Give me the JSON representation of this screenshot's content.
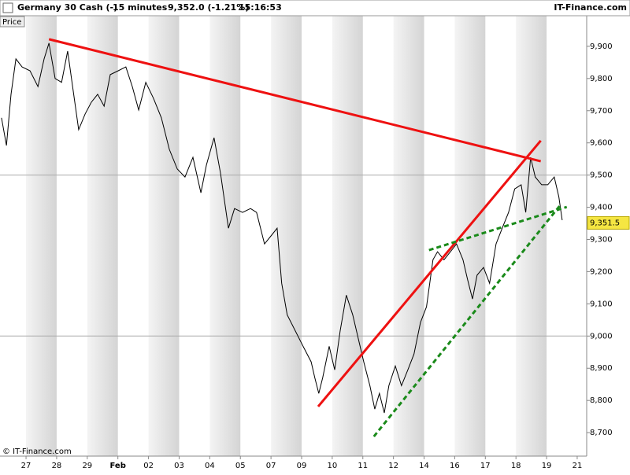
{
  "header": {
    "instrument": "Germany 30 Cash (-)",
    "interval": "15 minutes",
    "quote": "9,352.0 (-1.21%)",
    "time": "15:16:53",
    "brand": "IT-Finance.com"
  },
  "chart_data": {
    "type": "line",
    "footer": "© IT-Finance.com",
    "x": [
      -0.8,
      -0.64,
      -0.49,
      -0.33,
      -0.13,
      0.13,
      0.39,
      0.59,
      0.75,
      0.95,
      1.16,
      1.36,
      1.52,
      1.72,
      1.93,
      2.13,
      2.34,
      2.55,
      2.75,
      3.01,
      3.26,
      3.47,
      3.68,
      3.91,
      4.16,
      4.42,
      4.68,
      4.94,
      5.19,
      5.45,
      5.71,
      5.89,
      6.14,
      6.35,
      6.61,
      6.81,
      7.07,
      7.33,
      7.53,
      7.79,
      8.0,
      8.2,
      8.35,
      8.53,
      8.79,
      9.05,
      9.31,
      9.43,
      9.56,
      9.69,
      9.9,
      10.08,
      10.26,
      10.46,
      10.67,
      10.85,
      11.03,
      11.23,
      11.39,
      11.54,
      11.7,
      11.85,
      12.06,
      12.26,
      12.47,
      12.67,
      12.88,
      13.08,
      13.29,
      13.44,
      13.65,
      13.86,
      14.06,
      14.27,
      14.42,
      14.58,
      14.73,
      14.94,
      15.14,
      15.35,
      15.55,
      15.76,
      15.96,
      16.17,
      16.32,
      16.48,
      16.63,
      16.84,
      17.04,
      17.25,
      17.4,
      17.51
    ],
    "series": [
      {
        "name": "Price",
        "color": "#000000",
        "values": [
          9678,
          9592,
          9751,
          9861,
          9836,
          9824,
          9775,
          9861,
          9910,
          9800,
          9788,
          9885,
          9775,
          9641,
          9690,
          9726,
          9751,
          9714,
          9812,
          9824,
          9836,
          9775,
          9702,
          9788,
          9739,
          9678,
          9580,
          9519,
          9494,
          9555,
          9445,
          9531,
          9616,
          9506,
          9335,
          9396,
          9384,
          9396,
          9384,
          9286,
          9311,
          9335,
          9164,
          9066,
          9017,
          8968,
          8920,
          8871,
          8822,
          8871,
          8968,
          8895,
          9017,
          9127,
          9066,
          8993,
          8920,
          8846,
          8773,
          8822,
          8761,
          8846,
          8907,
          8846,
          8895,
          8944,
          9042,
          9091,
          9237,
          9262,
          9237,
          9262,
          9286,
          9237,
          9176,
          9115,
          9189,
          9213,
          9164,
          9286,
          9335,
          9384,
          9457,
          9470,
          9384,
          9555,
          9494,
          9470,
          9470,
          9494,
          9433,
          9360
        ]
      }
    ],
    "last_value": {
      "value": 9351.5,
      "label": "9,351.5"
    },
    "trendlines": [
      {
        "color": "#ee1111",
        "dashed": false,
        "x": [
          0.75,
          16.81
        ],
        "y": [
          9922,
          9543
        ]
      },
      {
        "color": "#ee1111",
        "dashed": false,
        "x": [
          9.54,
          16.81
        ],
        "y": [
          8781,
          9607
        ]
      },
      {
        "color": "#1a8a1a",
        "dashed": true,
        "x": [
          13.16,
          17.66
        ],
        "y": [
          9267,
          9401
        ]
      },
      {
        "color": "#1a8a1a",
        "dashed": true,
        "x": [
          11.36,
          17.46
        ],
        "y": [
          8688,
          9408
        ]
      }
    ],
    "xlim": [
      -0.85,
      18.31
    ],
    "ylim": [
      8627,
      9995
    ],
    "xticks": [
      {
        "value": 0,
        "label": "27"
      },
      {
        "value": 1,
        "label": "28"
      },
      {
        "value": 2,
        "label": "29"
      },
      {
        "value": 3,
        "label": "Feb"
      },
      {
        "value": 4,
        "label": "02"
      },
      {
        "value": 5,
        "label": "03"
      },
      {
        "value": 6,
        "label": "04"
      },
      {
        "value": 7,
        "label": "05"
      },
      {
        "value": 8,
        "label": "07"
      },
      {
        "value": 9,
        "label": "09"
      },
      {
        "value": 10,
        "label": "10"
      },
      {
        "value": 11,
        "label": "11"
      },
      {
        "value": 12,
        "label": "12"
      },
      {
        "value": 13,
        "label": "14"
      },
      {
        "value": 14,
        "label": "16"
      },
      {
        "value": 15,
        "label": "17"
      },
      {
        "value": 16,
        "label": "18"
      },
      {
        "value": 17,
        "label": "19"
      },
      {
        "value": 18,
        "label": "21"
      }
    ],
    "yticks": [
      {
        "value": 8700,
        "label": "8,700"
      },
      {
        "value": 8800,
        "label": "8,800"
      },
      {
        "value": 8900,
        "label": "8,900"
      },
      {
        "value": 9000,
        "label": "9,000"
      },
      {
        "value": 9100,
        "label": "9,100"
      },
      {
        "value": 9200,
        "label": "9,200"
      },
      {
        "value": 9300,
        "label": "9,300"
      },
      {
        "value": 9400,
        "label": "9,400"
      },
      {
        "value": 9500,
        "label": "9,500"
      },
      {
        "value": 9600,
        "label": "9,600"
      },
      {
        "value": 9700,
        "label": "9,700"
      },
      {
        "value": 9800,
        "label": "9,800"
      },
      {
        "value": 9900,
        "label": "9,900"
      }
    ]
  }
}
